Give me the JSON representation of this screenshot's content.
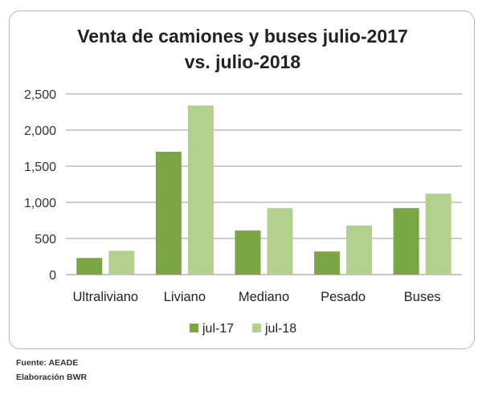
{
  "chart_data": {
    "type": "bar",
    "title_lines": [
      "Venta de camiones y buses julio-2017",
      "vs. julio-2018"
    ],
    "categories": [
      "Ultraliviano",
      "Liviano",
      "Mediano",
      "Pesado",
      "Buses"
    ],
    "series": [
      {
        "name": "jul-17",
        "color": "#7aa744",
        "values": [
          230,
          1700,
          610,
          320,
          920
        ]
      },
      {
        "name": "jul-18",
        "color": "#b3d08f",
        "values": [
          330,
          2340,
          920,
          680,
          1120
        ]
      }
    ],
    "y_ticks": [
      0,
      500,
      1000,
      1500,
      2000,
      2500
    ],
    "y_tick_labels": [
      "0",
      "500",
      "1,000",
      "1,500",
      "2,000",
      "2,500"
    ],
    "ylim": [
      0,
      2500
    ],
    "grid": true,
    "legend_position": "bottom"
  },
  "footer": {
    "source": "Fuente: AEADE",
    "credit": "Elaboración BWR"
  }
}
